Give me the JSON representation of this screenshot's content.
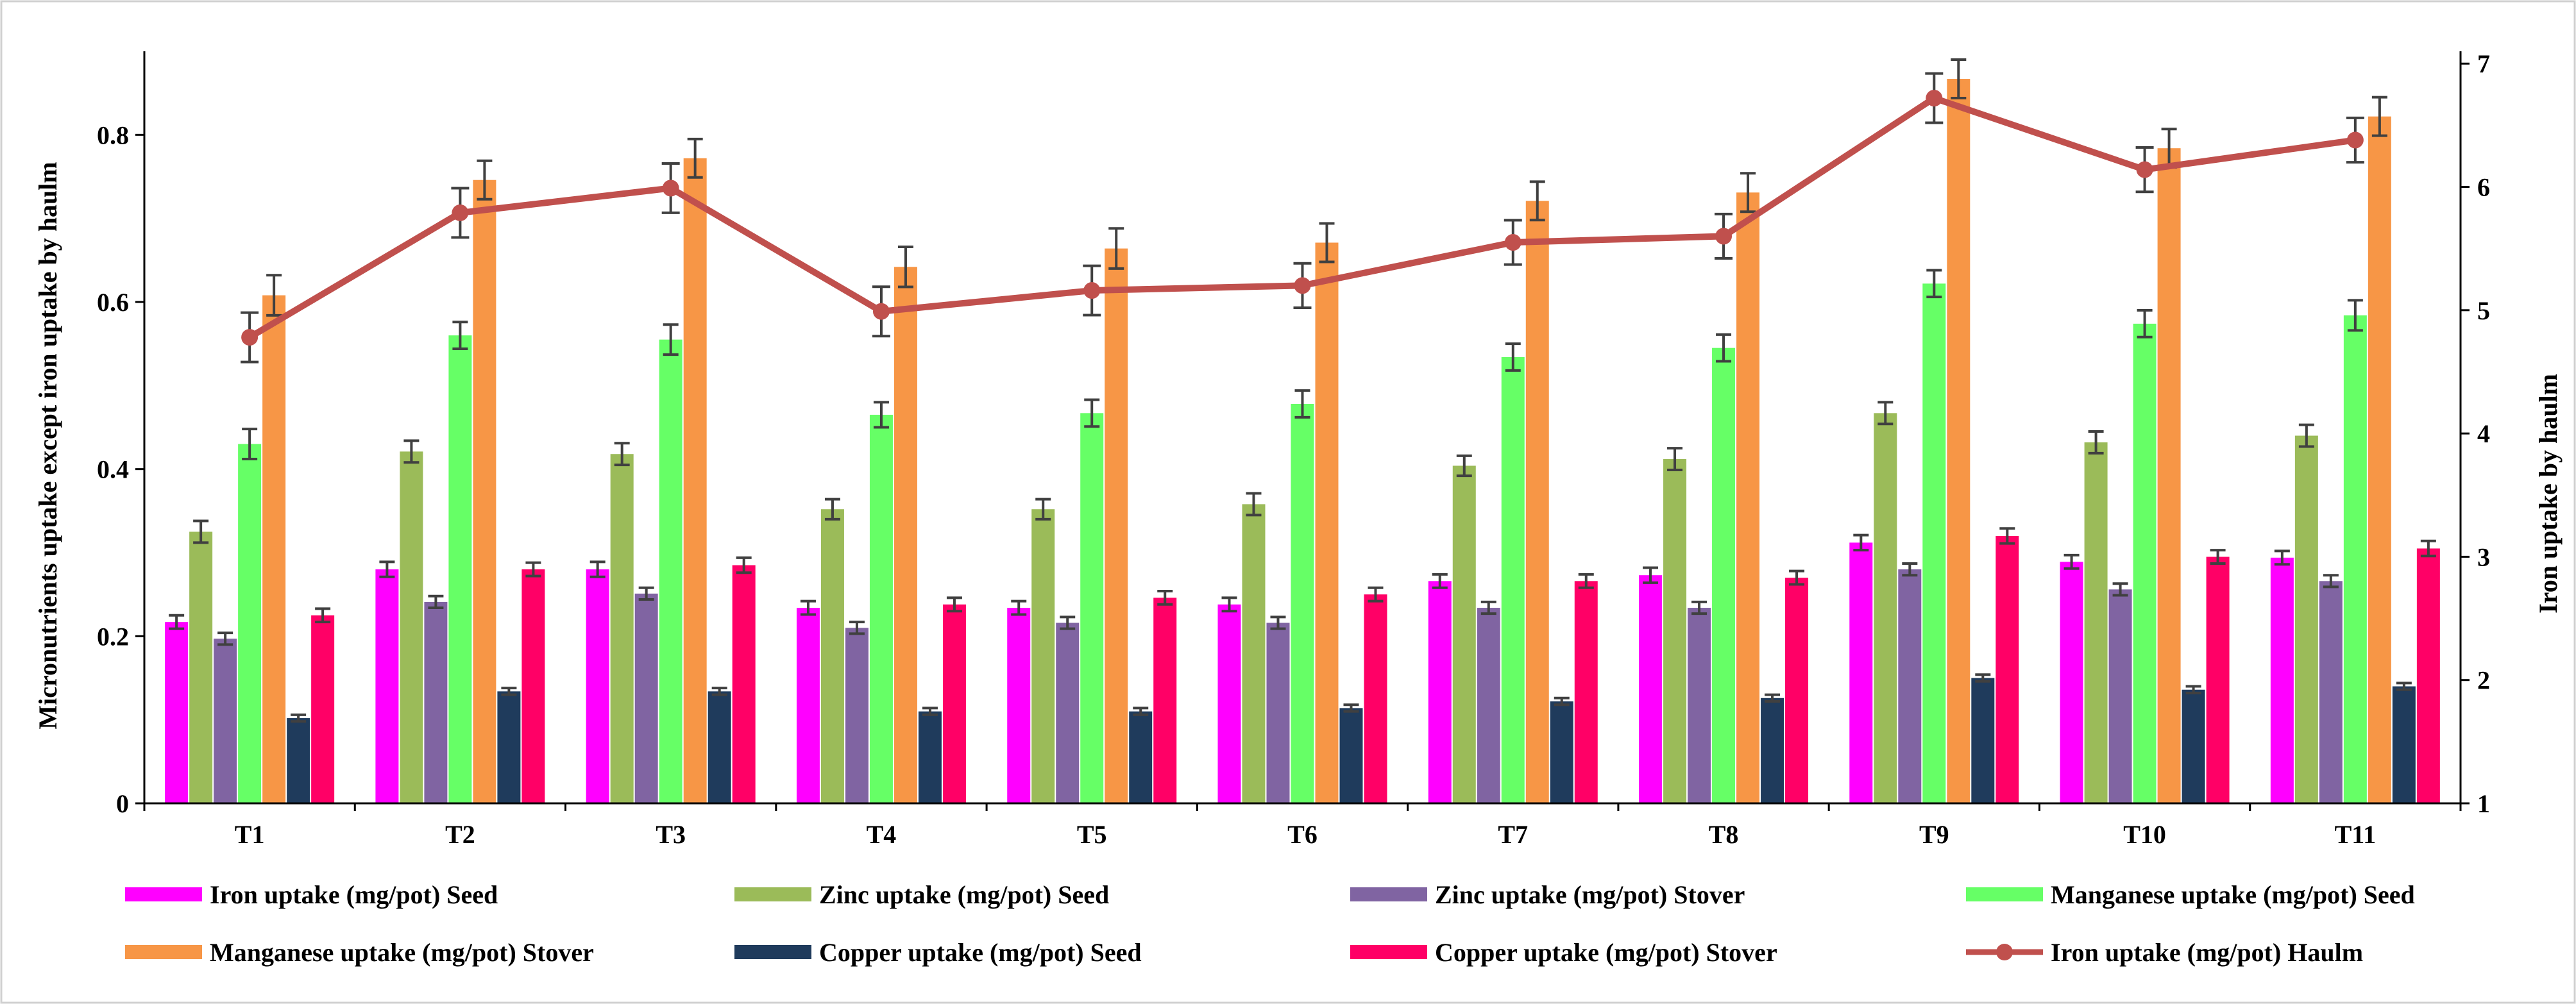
{
  "chart_data": {
    "type": "bar",
    "categories": [
      "T1",
      "T2",
      "T3",
      "T4",
      "T5",
      "T6",
      "T7",
      "T8",
      "T9",
      "T10",
      "T11"
    ],
    "series": [
      {
        "name": "Iron uptake (mg/pot) Seed",
        "color": "#FF00FF",
        "axis": "left",
        "values": [
          0.217,
          0.28,
          0.28,
          0.234,
          0.234,
          0.238,
          0.266,
          0.273,
          0.312,
          0.289,
          0.294
        ],
        "errors": [
          0.008,
          0.009,
          0.009,
          0.008,
          0.008,
          0.008,
          0.008,
          0.009,
          0.009,
          0.008,
          0.008
        ]
      },
      {
        "name": "Zinc uptake (mg/pot) Seed",
        "color": "#9BBB59",
        "axis": "left",
        "values": [
          0.325,
          0.421,
          0.418,
          0.352,
          0.352,
          0.358,
          0.404,
          0.412,
          0.467,
          0.432,
          0.44
        ],
        "errors": [
          0.013,
          0.013,
          0.013,
          0.012,
          0.012,
          0.013,
          0.012,
          0.013,
          0.013,
          0.013,
          0.013
        ]
      },
      {
        "name": "Zinc uptake (mg/pot) Stover",
        "color": "#8064A2",
        "axis": "left",
        "values": [
          0.197,
          0.241,
          0.251,
          0.21,
          0.216,
          0.216,
          0.234,
          0.234,
          0.28,
          0.256,
          0.266
        ],
        "errors": [
          0.007,
          0.007,
          0.007,
          0.007,
          0.007,
          0.007,
          0.007,
          0.007,
          0.007,
          0.007,
          0.007
        ]
      },
      {
        "name": "Manganese uptake (mg/pot) Seed",
        "color": "#66FF66",
        "axis": "left",
        "values": [
          0.43,
          0.56,
          0.555,
          0.465,
          0.467,
          0.478,
          0.534,
          0.545,
          0.622,
          0.574,
          0.584
        ],
        "errors": [
          0.018,
          0.016,
          0.018,
          0.015,
          0.016,
          0.016,
          0.016,
          0.016,
          0.016,
          0.016,
          0.018
        ]
      },
      {
        "name": "Manganese uptake (mg/pot) Stover",
        "color": "#F79646",
        "axis": "left",
        "values": [
          0.608,
          0.746,
          0.772,
          0.642,
          0.664,
          0.671,
          0.721,
          0.731,
          0.867,
          0.784,
          0.822
        ],
        "errors": [
          0.024,
          0.023,
          0.023,
          0.024,
          0.024,
          0.023,
          0.023,
          0.023,
          0.023,
          0.023,
          0.023
        ]
      },
      {
        "name": "Copper uptake (mg/pot) Seed",
        "color": "#1F3B5C",
        "axis": "left",
        "values": [
          0.102,
          0.134,
          0.134,
          0.11,
          0.11,
          0.114,
          0.122,
          0.126,
          0.15,
          0.136,
          0.14
        ],
        "errors": [
          0.004,
          0.004,
          0.004,
          0.004,
          0.004,
          0.004,
          0.004,
          0.004,
          0.004,
          0.004,
          0.004
        ]
      },
      {
        "name": "Copper uptake (mg/pot) Stover",
        "color": "#FF0066",
        "axis": "left",
        "values": [
          0.225,
          0.28,
          0.285,
          0.238,
          0.246,
          0.25,
          0.266,
          0.27,
          0.32,
          0.295,
          0.305
        ],
        "errors": [
          0.008,
          0.008,
          0.009,
          0.008,
          0.008,
          0.008,
          0.008,
          0.008,
          0.009,
          0.008,
          0.009
        ]
      },
      {
        "name": "Iron uptake (mg/pot) Haulm",
        "color": "#C0504D",
        "axis": "right",
        "kind": "line",
        "values": [
          4.78,
          5.79,
          5.99,
          4.99,
          5.16,
          5.2,
          5.55,
          5.6,
          6.72,
          6.14,
          6.38
        ],
        "errors": [
          0.2,
          0.2,
          0.2,
          0.2,
          0.2,
          0.18,
          0.18,
          0.18,
          0.2,
          0.18,
          0.18
        ]
      }
    ],
    "ylabel": "Micronutrients  uptake  except  iron uptake  by  haulm",
    "ylabel_right": "Iron  uptake  by  haulm",
    "ylim": [
      0,
      0.9
    ],
    "yticks": [
      0,
      0.2,
      0.4,
      0.6,
      0.8
    ],
    "ytick_labels": [
      "0",
      "0.2",
      "0.4",
      "0.6",
      "0.8"
    ],
    "ylim_right": [
      1,
      7.1
    ],
    "yticks_right": [
      1,
      2,
      3,
      4,
      5,
      6,
      7
    ],
    "ytick_labels_right": [
      "1",
      "2",
      "3",
      "4",
      "5",
      "6",
      "7"
    ],
    "legend_position": "bottom"
  }
}
